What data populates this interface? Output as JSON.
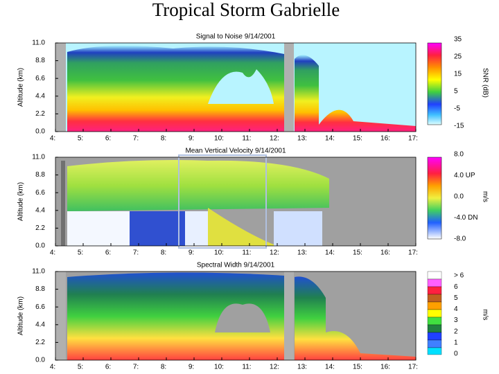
{
  "title": "Tropical Storm Gabrielle",
  "panels": [
    {
      "title": "Signal to Noise   9/14/2001",
      "y_label": "Altitude (km)",
      "y_ticks": [
        "11.0",
        "8.8",
        "6.6",
        "4.4",
        "2.2",
        "0.0"
      ],
      "x_ticks": [
        "4:",
        "5:",
        "6:",
        "7:",
        "8:",
        "9:",
        "10:",
        "11:",
        "12:",
        "13:",
        "14:",
        "15:",
        "16:",
        "17:"
      ],
      "colorbar_label": "SNR (dB)",
      "colorbar_ticks": [
        "35",
        "25",
        "15",
        "5",
        "-5",
        "-15"
      ]
    },
    {
      "title": "Mean Vertical Velocity   9/14/2001",
      "y_label": "Altitude (km)",
      "y_ticks": [
        "11.0",
        "8.8",
        "6.6",
        "4.4",
        "2.2",
        "0.0"
      ],
      "x_ticks": [
        "4:",
        "5:",
        "6:",
        "7:",
        "8:",
        "9:",
        "10:",
        "11:",
        "12:",
        "13:",
        "14:",
        "15:",
        "16:",
        "17:"
      ],
      "colorbar_label": "m/s",
      "colorbar_ticks": [
        "8.0",
        "4.0  UP",
        "0.0",
        "-4.0  DN",
        "-8.0"
      ]
    },
    {
      "title": "Spectral Width   9/14/2001",
      "y_label": "Altitude (km)",
      "y_ticks": [
        "11.0",
        "8.8",
        "6.6",
        "4.4",
        "2.2",
        "0.0"
      ],
      "x_ticks": [
        "4:",
        "5:",
        "6:",
        "7:",
        "8:",
        "9:",
        "10:",
        "11:",
        "12:",
        "13:",
        "14:",
        "15:",
        "16:",
        "17:"
      ],
      "colorbar_label": "m/s",
      "colorbar_ticks": [
        "> 6",
        "6",
        "5",
        "4",
        "3",
        "2",
        "1",
        "0"
      ]
    }
  ]
}
